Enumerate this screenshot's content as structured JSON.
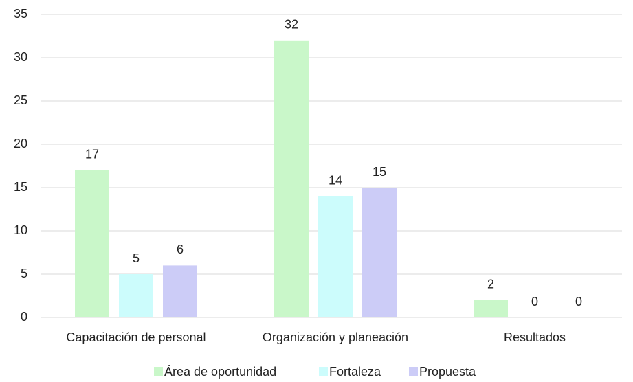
{
  "chart_data": {
    "type": "bar",
    "categories": [
      "Capacitación de personal",
      "Organización y planeación",
      "Resultados"
    ],
    "series": [
      {
        "name": "Área de oportunidad",
        "color": "#c9f7c9",
        "values": [
          17,
          32,
          2
        ]
      },
      {
        "name": "Fortaleza",
        "color": "#ccfcfc",
        "values": [
          5,
          14,
          0
        ]
      },
      {
        "name": "Propuesta",
        "color": "#ccccf7",
        "values": [
          6,
          15,
          0
        ]
      }
    ],
    "ylim": [
      0,
      35
    ],
    "yticks": [
      0,
      5,
      10,
      15,
      20,
      25,
      30,
      35
    ],
    "grid": true,
    "legend": "bottom"
  }
}
